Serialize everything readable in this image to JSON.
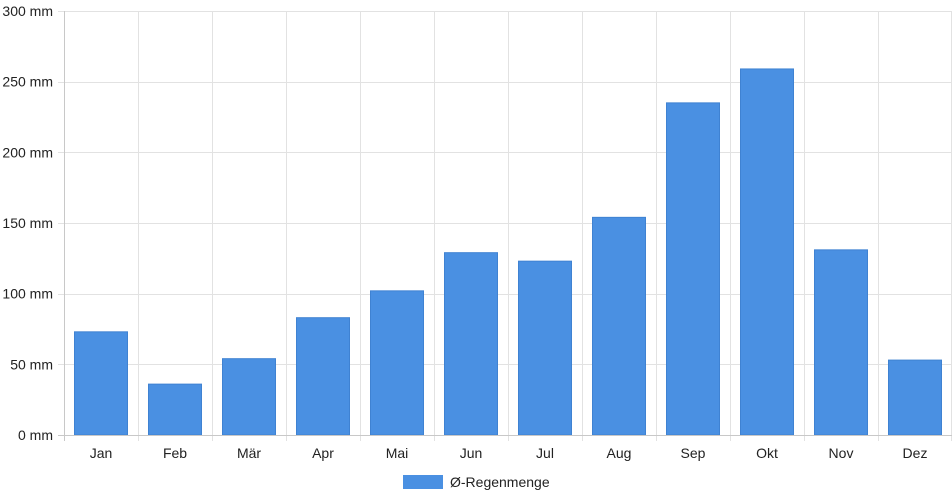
{
  "chart_data": {
    "type": "bar",
    "categories": [
      "Jan",
      "Feb",
      "Mär",
      "Apr",
      "Mai",
      "Jun",
      "Jul",
      "Aug",
      "Sep",
      "Okt",
      "Nov",
      "Dez"
    ],
    "series": [
      {
        "name": "Ø-Regenmenge",
        "values": [
          73,
          36,
          54,
          83,
          102,
          129,
          123,
          154,
          235,
          259,
          131,
          53
        ],
        "color": "#4a90e2"
      }
    ],
    "title": "",
    "xlabel": "",
    "ylabel": "",
    "ylim": [
      0,
      300
    ],
    "yticks": [
      0,
      50,
      100,
      150,
      200,
      250,
      300
    ],
    "ytick_labels": [
      "0 mm",
      "50 mm",
      "100 mm",
      "150 mm",
      "200 mm",
      "250 mm",
      "300 mm"
    ],
    "grid": true,
    "legend_position": "bottom-center",
    "grid_color": "#e2e2e2",
    "axis_color": "#c8c8c8"
  }
}
